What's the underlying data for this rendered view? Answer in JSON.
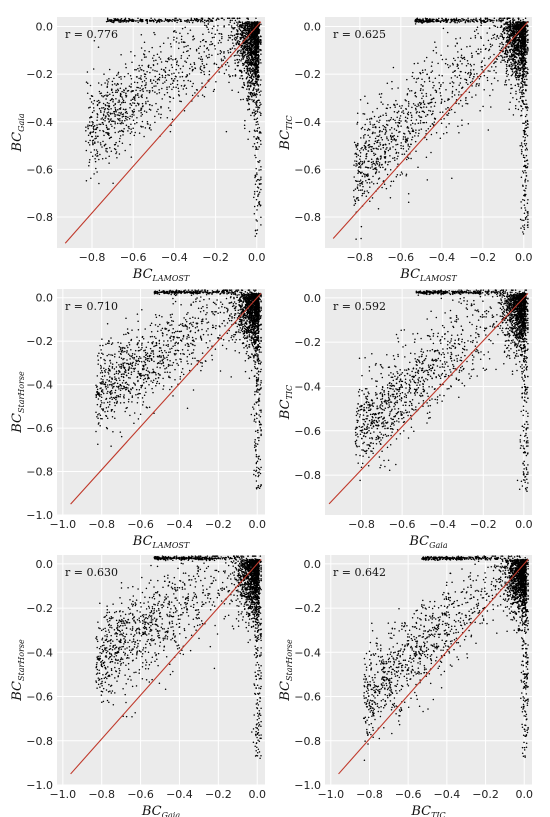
{
  "chart_data": [
    {
      "type": "scatter",
      "panel": "a",
      "r_label": "r = 0.776",
      "xlabel": "BC",
      "xlabel_sub": "LAMOST",
      "ylabel": "BC",
      "ylabel_sub": "Gaia",
      "xlim": [
        -0.97,
        0.04
      ],
      "ylim": [
        -0.93,
        0.04
      ],
      "xticks": [
        -0.8,
        -0.6,
        -0.4,
        -0.2,
        0.0
      ],
      "yticks": [
        -0.8,
        -0.6,
        -0.4,
        -0.2,
        0.0
      ],
      "fit_line": [
        [
          -0.93,
          -0.91
        ],
        [
          0.02,
          0.02
        ]
      ],
      "r": 0.776,
      "n_points": 2600,
      "grid": true
    },
    {
      "type": "scatter",
      "panel": "b",
      "r_label": "r = 0.625",
      "xlabel": "BC",
      "xlabel_sub": "LAMOST",
      "ylabel": "BC",
      "ylabel_sub": "TIC",
      "xlim": [
        -0.97,
        0.04
      ],
      "ylim": [
        -0.93,
        0.04
      ],
      "xticks": [
        -0.8,
        -0.6,
        -0.4,
        -0.2,
        0.0
      ],
      "yticks": [
        -0.8,
        -0.6,
        -0.4,
        -0.2,
        0.0
      ],
      "fit_line": [
        [
          -0.93,
          -0.89
        ],
        [
          0.02,
          0.02
        ]
      ],
      "r": 0.625,
      "n_points": 2600,
      "grid": true
    },
    {
      "type": "scatter",
      "panel": "c",
      "r_label": "r = 0.710",
      "xlabel": "BC",
      "xlabel_sub": "LAMOST",
      "ylabel": "BC",
      "ylabel_sub": "StarHorse",
      "xlim": [
        -1.03,
        0.04
      ],
      "ylim": [
        -1.0,
        0.04
      ],
      "xticks": [
        -1.0,
        -0.8,
        -0.6,
        -0.4,
        -0.2,
        0.0
      ],
      "yticks": [
        -1.0,
        -0.8,
        -0.6,
        -0.4,
        -0.2,
        0.0
      ],
      "fit_line": [
        [
          -0.96,
          -0.95
        ],
        [
          0.02,
          0.02
        ]
      ],
      "r": 0.71,
      "n_points": 2600,
      "grid": true
    },
    {
      "type": "scatter",
      "panel": "d",
      "r_label": "r = 0.592",
      "xlabel": "BC",
      "xlabel_sub": "Gaia",
      "ylabel": "BC",
      "ylabel_sub": "TIC",
      "xlim": [
        -0.98,
        0.04
      ],
      "ylim": [
        -0.98,
        0.04
      ],
      "xticks": [
        -0.8,
        -0.6,
        -0.4,
        -0.2,
        0.0
      ],
      "yticks": [
        -0.8,
        -0.6,
        -0.4,
        -0.2,
        0.0
      ],
      "fit_line": [
        [
          -0.96,
          -0.93
        ],
        [
          0.02,
          0.02
        ]
      ],
      "r": 0.592,
      "n_points": 2600,
      "grid": true
    },
    {
      "type": "scatter",
      "panel": "e",
      "r_label": "r = 0.630",
      "xlabel": "BC",
      "xlabel_sub": "Gaia",
      "ylabel": "BC",
      "ylabel_sub": "StarHorse",
      "xlim": [
        -1.03,
        0.04
      ],
      "ylim": [
        -1.0,
        0.04
      ],
      "xticks": [
        -1.0,
        -0.8,
        -0.6,
        -0.4,
        -0.2,
        0.0
      ],
      "yticks": [
        -1.0,
        -0.8,
        -0.6,
        -0.4,
        -0.2,
        0.0
      ],
      "fit_line": [
        [
          -0.96,
          -0.95
        ],
        [
          0.02,
          0.02
        ]
      ],
      "r": 0.63,
      "n_points": 2600,
      "grid": true
    },
    {
      "type": "scatter",
      "panel": "f",
      "r_label": "r = 0.642",
      "xlabel": "BC",
      "xlabel_sub": "TIC",
      "ylabel": "BC",
      "ylabel_sub": "StarHorse",
      "xlim": [
        -1.03,
        0.04
      ],
      "ylim": [
        -1.0,
        0.04
      ],
      "xticks": [
        -1.0,
        -0.8,
        -0.6,
        -0.4,
        -0.2,
        0.0
      ],
      "yticks": [
        -1.0,
        -0.8,
        -0.6,
        -0.4,
        -0.2,
        0.0
      ],
      "fit_line": [
        [
          -0.96,
          -0.95
        ],
        [
          0.02,
          0.02
        ]
      ],
      "r": 0.642,
      "n_points": 2600,
      "grid": true
    }
  ],
  "style": {
    "panel_bg": "#ebebeb",
    "grid_color": "#ffffff",
    "point_color": "#000000",
    "line_color": "#c0392b"
  }
}
